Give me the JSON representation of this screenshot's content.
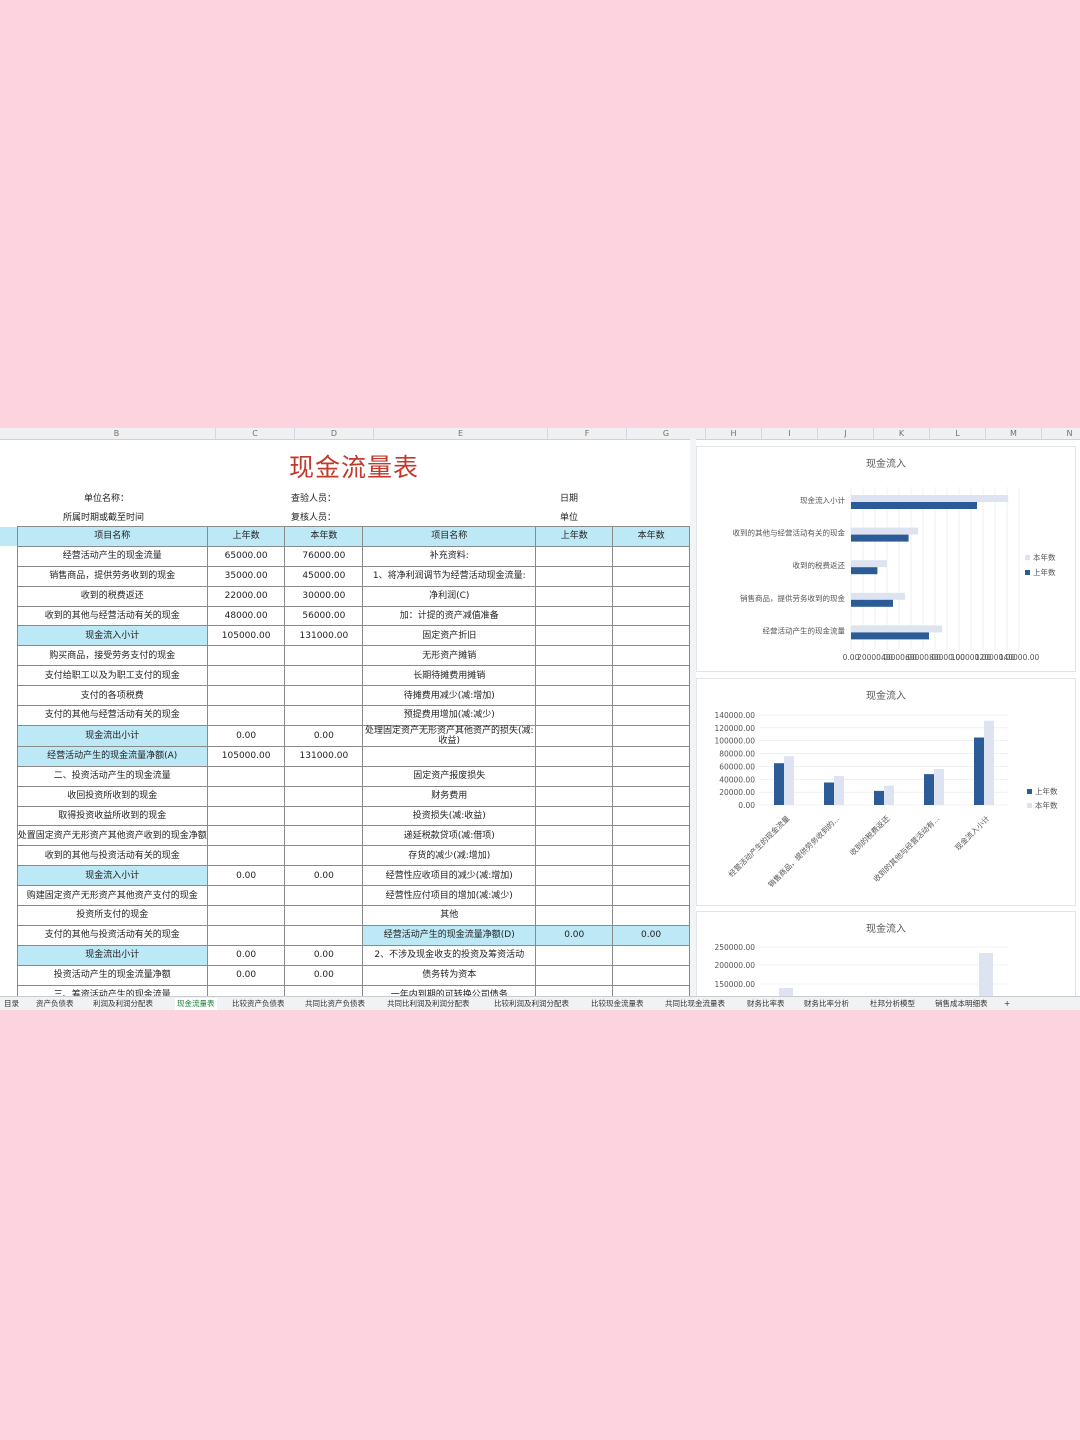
{
  "columns": [
    "B",
    "C",
    "D",
    "E",
    "F",
    "G",
    "H",
    "I",
    "J",
    "K",
    "L",
    "M",
    "N"
  ],
  "title": "现金流量表",
  "meta": {
    "unit_name_label": "单位名称：",
    "period_label": "所属时期或截至时间",
    "checker_label": "查验人员：",
    "reviewer_label": "复核人员：",
    "date_label": "日期",
    "unit_label": "单位"
  },
  "table": {
    "headers": [
      "项目名称",
      "上年数",
      "本年数",
      "项目名称",
      "上年数",
      "本年数"
    ],
    "rows": [
      [
        "经营活动产生的现金流量",
        "65000.00",
        "76000.00",
        "补充资料:",
        "",
        ""
      ],
      [
        "销售商品，提供劳务收到的现金",
        "35000.00",
        "45000.00",
        "1、将净利润调节为经营活动现金流量:",
        "",
        ""
      ],
      [
        "收到的税费返还",
        "22000.00",
        "30000.00",
        "净利润(C)",
        "",
        ""
      ],
      [
        "收到的其他与经营活动有关的现金",
        "48000.00",
        "56000.00",
        "加：计提的资产减值准备",
        "",
        ""
      ],
      [
        "现金流入小计",
        "105000.00",
        "131000.00",
        "固定资产折旧",
        "",
        ""
      ],
      [
        "购买商品，接受劳务支付的现金",
        "",
        "",
        "无形资产摊销",
        "",
        ""
      ],
      [
        "支付给职工以及为职工支付的现金",
        "",
        "",
        "长期待摊费用摊销",
        "",
        ""
      ],
      [
        "支付的各项税费",
        "",
        "",
        "待摊费用减少(减:增加)",
        "",
        ""
      ],
      [
        "支付的其他与经营活动有关的现金",
        "",
        "",
        "预提费用增加(减:减少)",
        "",
        ""
      ],
      [
        "现金流出小计",
        "0.00",
        "0.00",
        "处理固定资产无形资产其他资产的损失(减:收益)",
        "",
        ""
      ],
      [
        "经营活动产生的现金流量净额(A)",
        "105000.00",
        "131000.00",
        "",
        "",
        ""
      ],
      [
        "二、投资活动产生的现金流量",
        "",
        "",
        "固定资产报废损失",
        "",
        ""
      ],
      [
        "收回投资所收到的现金",
        "",
        "",
        "财务费用",
        "",
        ""
      ],
      [
        "取得投资收益所收到的现金",
        "",
        "",
        "投资损失(减:收益)",
        "",
        ""
      ],
      [
        "处置固定资产无形资产其他资产收到的现金净额",
        "",
        "",
        "递延税款贷项(减:借项)",
        "",
        ""
      ],
      [
        "收到的其他与投资活动有关的现金",
        "",
        "",
        "存货的减少(减:增加)",
        "",
        ""
      ],
      [
        "现金流入小计",
        "0.00",
        "0.00",
        "经营性应收项目的减少(减:增加)",
        "",
        ""
      ],
      [
        "购建固定资产无形资产其他资产支付的现金",
        "",
        "",
        "经营性应付项目的增加(减:减少)",
        "",
        ""
      ],
      [
        "投资所支付的现金",
        "",
        "",
        "其他",
        "",
        ""
      ],
      [
        "支付的其他与投资活动有关的现金",
        "",
        "",
        "经营活动产生的现金流量净额(D)",
        "0.00",
        "0.00"
      ],
      [
        "现金流出小计",
        "0.00",
        "0.00",
        "2、不涉及现金收支的投资及筹资活动",
        "",
        ""
      ],
      [
        "投资活动产生的现金流量净额",
        "0.00",
        "0.00",
        "债务转为资本",
        "",
        ""
      ],
      [
        "三、筹资活动产生的现金流量",
        "",
        "",
        "一年内到期的可转换公司债务",
        "",
        ""
      ]
    ]
  },
  "chart_data": [
    {
      "type": "bar",
      "orientation": "horizontal",
      "title": "现金流入",
      "categories": [
        "经营活动产生的现金流量",
        "销售商品，提供劳务收到的现金",
        "收到的税费返还",
        "收到的其他与经营活动有关的现金",
        "现金流入小计"
      ],
      "series": [
        {
          "name": "上年数",
          "values": [
            65000,
            35000,
            22000,
            48000,
            105000
          ],
          "color": "#2c5c98"
        },
        {
          "name": "本年数",
          "values": [
            76000,
            45000,
            30000,
            56000,
            131000
          ],
          "color": "#dde3f0"
        }
      ],
      "xlim": [
        0,
        140000
      ],
      "legend": "right",
      "grid": true
    },
    {
      "type": "bar",
      "title": "现金流入",
      "categories": [
        "经营活动产生的现金流量",
        "销售商品，提供劳务收到的...",
        "收到的税费返还",
        "收到的其他与经营活动有...",
        "现金流入小计"
      ],
      "series": [
        {
          "name": "上年数",
          "values": [
            65000,
            35000,
            22000,
            48000,
            105000
          ],
          "color": "#2c5c98"
        },
        {
          "name": "本年数",
          "values": [
            76000,
            45000,
            30000,
            56000,
            131000
          ],
          "color": "#dde3f0"
        }
      ],
      "ylim": [
        0,
        140000
      ],
      "yticks": [
        "140000.00",
        "120000.00",
        "100000.00",
        "80000.00",
        "60000.00",
        "40000.00",
        "20000.00",
        "0.00"
      ],
      "legend": "right",
      "grid": true
    },
    {
      "type": "bar",
      "title": "现金流入",
      "yticks": [
        "250000.00",
        "200000.00",
        "150000.00"
      ],
      "partial": true
    }
  ],
  "sheet_tabs": [
    "目录",
    "资产负债表",
    "利润及利润分配表",
    "现金流量表",
    "比较资产负债表",
    "共同比资产负债表",
    "共同比利润及利润分配表",
    "比较利润及利润分配表",
    "比较现金流量表",
    "共同比现金流量表",
    "财务比率表",
    "财务比率分析",
    "杜邦分析模型",
    "销售成本明细表",
    "+"
  ],
  "active_tab": "现金流量表"
}
